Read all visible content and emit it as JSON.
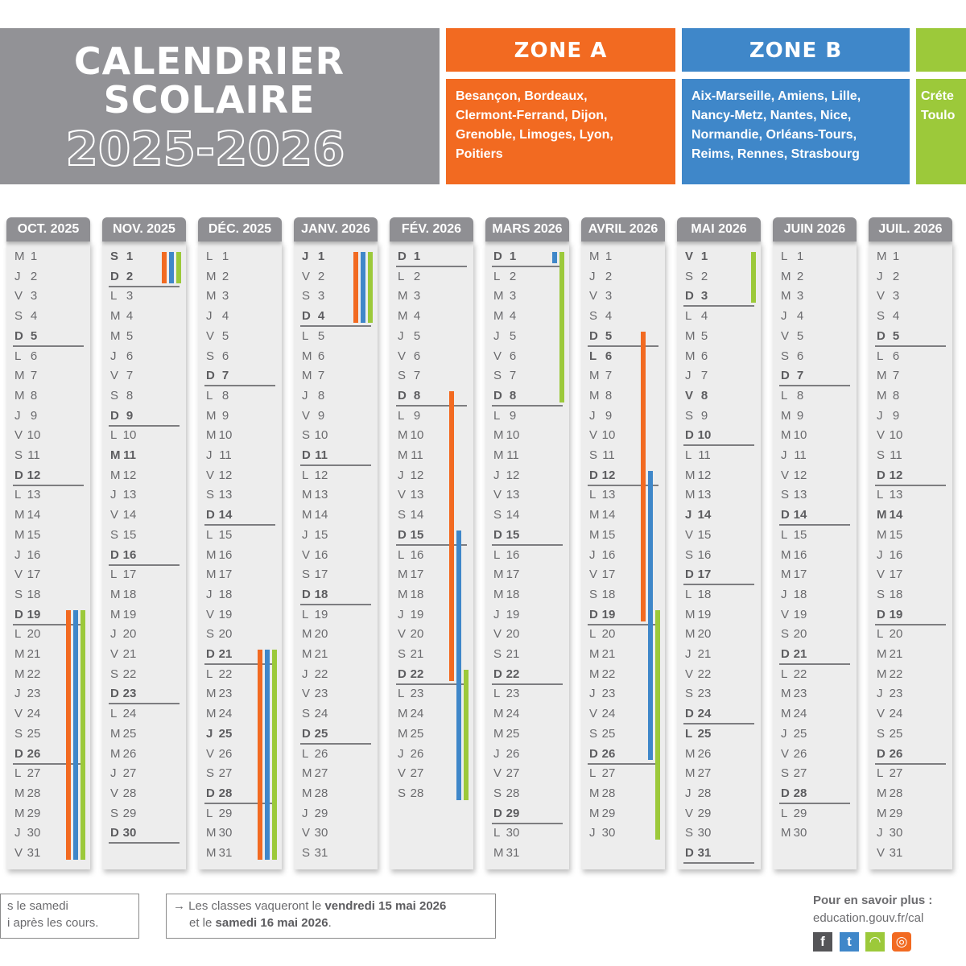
{
  "header": {
    "title_line1": "CALENDRIER",
    "title_line2": "SCOLAIRE",
    "year": "2025-2026"
  },
  "zones": [
    {
      "name": "ZONE A",
      "color": "#f26a21",
      "cities": [
        "Besançon, Bordeaux,",
        "Clermont-Ferrand, Dijon,",
        "Grenoble, Limoges, Lyon,",
        "Poitiers"
      ]
    },
    {
      "name": "ZONE B",
      "color": "#3f87c9",
      "cities": [
        "Aix-Marseille, Amiens, Lille,",
        "Nancy-Metz, Nantes, Nice,",
        "Normandie, Orléans-Tours,",
        "Reims, Rennes, Strasbourg"
      ]
    },
    {
      "name": "",
      "color": "#9cc93a",
      "cities": [
        "Créte",
        "Toulo"
      ]
    }
  ],
  "weekday_letters": [
    "L",
    "M",
    "M",
    "J",
    "V",
    "S",
    "D"
  ],
  "months": [
    {
      "label": "OCT. 2025",
      "first_weekday": 2,
      "days": 31,
      "holidays": []
    },
    {
      "label": "NOV. 2025",
      "first_weekday": 5,
      "days": 30,
      "holidays": [
        1,
        11
      ]
    },
    {
      "label": "DÉC. 2025",
      "first_weekday": 0,
      "days": 31,
      "holidays": [
        25
      ]
    },
    {
      "label": "JANV. 2026",
      "first_weekday": 3,
      "days": 31,
      "holidays": [
        1
      ]
    },
    {
      "label": "FÉV. 2026",
      "first_weekday": 6,
      "days": 28,
      "holidays": []
    },
    {
      "label": "MARS 2026",
      "first_weekday": 6,
      "days": 31,
      "holidays": []
    },
    {
      "label": "AVRIL 2026",
      "first_weekday": 2,
      "days": 30,
      "holidays": [
        6
      ]
    },
    {
      "label": "MAI 2026",
      "first_weekday": 4,
      "days": 31,
      "holidays": [
        1,
        8,
        14,
        25
      ]
    },
    {
      "label": "JUIN 2026",
      "first_weekday": 0,
      "days": 30,
      "holidays": []
    },
    {
      "label": "JUIL. 2026",
      "first_weekday": 2,
      "days": 31,
      "holidays": [
        14
      ]
    }
  ],
  "vacations": [
    {
      "month": 0,
      "zone": 0,
      "from": 19,
      "to": 31
    },
    {
      "month": 0,
      "zone": 1,
      "from": 19,
      "to": 31
    },
    {
      "month": 0,
      "zone": 2,
      "from": 19,
      "to": 31
    },
    {
      "month": 1,
      "zone": 0,
      "from": 1,
      "to": 2
    },
    {
      "month": 1,
      "zone": 1,
      "from": 1,
      "to": 2
    },
    {
      "month": 1,
      "zone": 2,
      "from": 1,
      "to": 2
    },
    {
      "month": 2,
      "zone": 0,
      "from": 21,
      "to": 31
    },
    {
      "month": 2,
      "zone": 1,
      "from": 21,
      "to": 31
    },
    {
      "month": 2,
      "zone": 2,
      "from": 21,
      "to": 31
    },
    {
      "month": 3,
      "zone": 0,
      "from": 1,
      "to": 4
    },
    {
      "month": 3,
      "zone": 1,
      "from": 1,
      "to": 4
    },
    {
      "month": 3,
      "zone": 2,
      "from": 1,
      "to": 4
    },
    {
      "month": 4,
      "zone": 0,
      "from": 8,
      "to": 22
    },
    {
      "month": 4,
      "zone": 1,
      "from": 15,
      "to": 28
    },
    {
      "month": 4,
      "zone": 2,
      "from": 22,
      "to": 28
    },
    {
      "month": 5,
      "zone": 1,
      "from": 1,
      "to": 1
    },
    {
      "month": 5,
      "zone": 2,
      "from": 1,
      "to": 8
    },
    {
      "month": 6,
      "zone": 0,
      "from": 5,
      "to": 19
    },
    {
      "month": 6,
      "zone": 1,
      "from": 12,
      "to": 26
    },
    {
      "month": 6,
      "zone": 2,
      "from": 19,
      "to": 30
    },
    {
      "month": 7,
      "zone": 2,
      "from": 1,
      "to": 3
    }
  ],
  "notes": {
    "left_line1": "s le samedi",
    "left_line2": "i après les cours.",
    "middle_prefix": "Les classes vaqueront le ",
    "middle_bold1": "vendredi 15 mai 2026",
    "middle_mid": "et le ",
    "middle_bold2": "samedi 16 mai 2026",
    "middle_suffix": "."
  },
  "more_info": {
    "label": "Pour en savoir plus :",
    "url": "education.gouv.fr/cal"
  },
  "social": [
    {
      "icon": "facebook-icon",
      "glyph": "f",
      "color": "#555558"
    },
    {
      "icon": "twitter-icon",
      "glyph": "t",
      "color": "#3f87c9"
    },
    {
      "icon": "snapchat-icon",
      "glyph": "◠",
      "color": "#9cc93a"
    },
    {
      "icon": "instagram-icon",
      "glyph": "◎",
      "color": "#f26a21"
    }
  ]
}
